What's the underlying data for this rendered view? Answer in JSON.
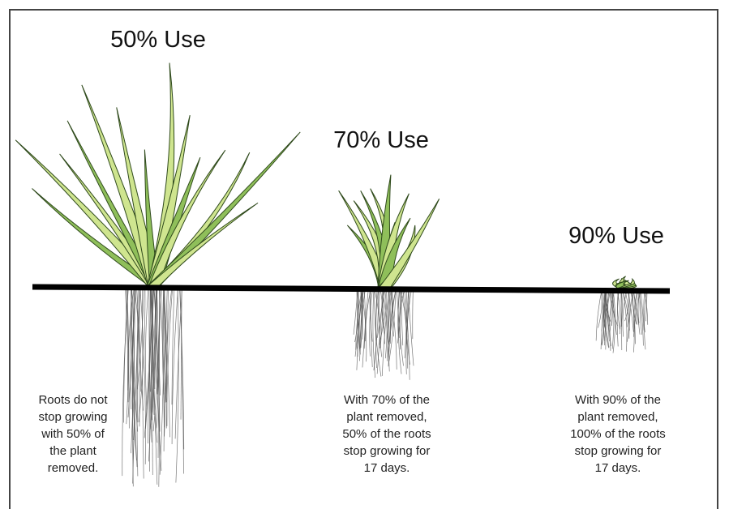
{
  "panels": [
    {
      "heading": "50% Use",
      "caption": [
        "Roots do not",
        "stop growing",
        "with 50% of",
        "the plant",
        "removed."
      ]
    },
    {
      "heading": "70% Use",
      "caption": [
        "With 70% of the",
        "plant removed,",
        "50% of the roots",
        "stop growing for",
        "17 days."
      ]
    },
    {
      "heading": "90% Use",
      "caption": [
        "With 90% of the",
        "plant removed,",
        "100% of the roots",
        "stop growing for",
        "17 days."
      ]
    }
  ]
}
